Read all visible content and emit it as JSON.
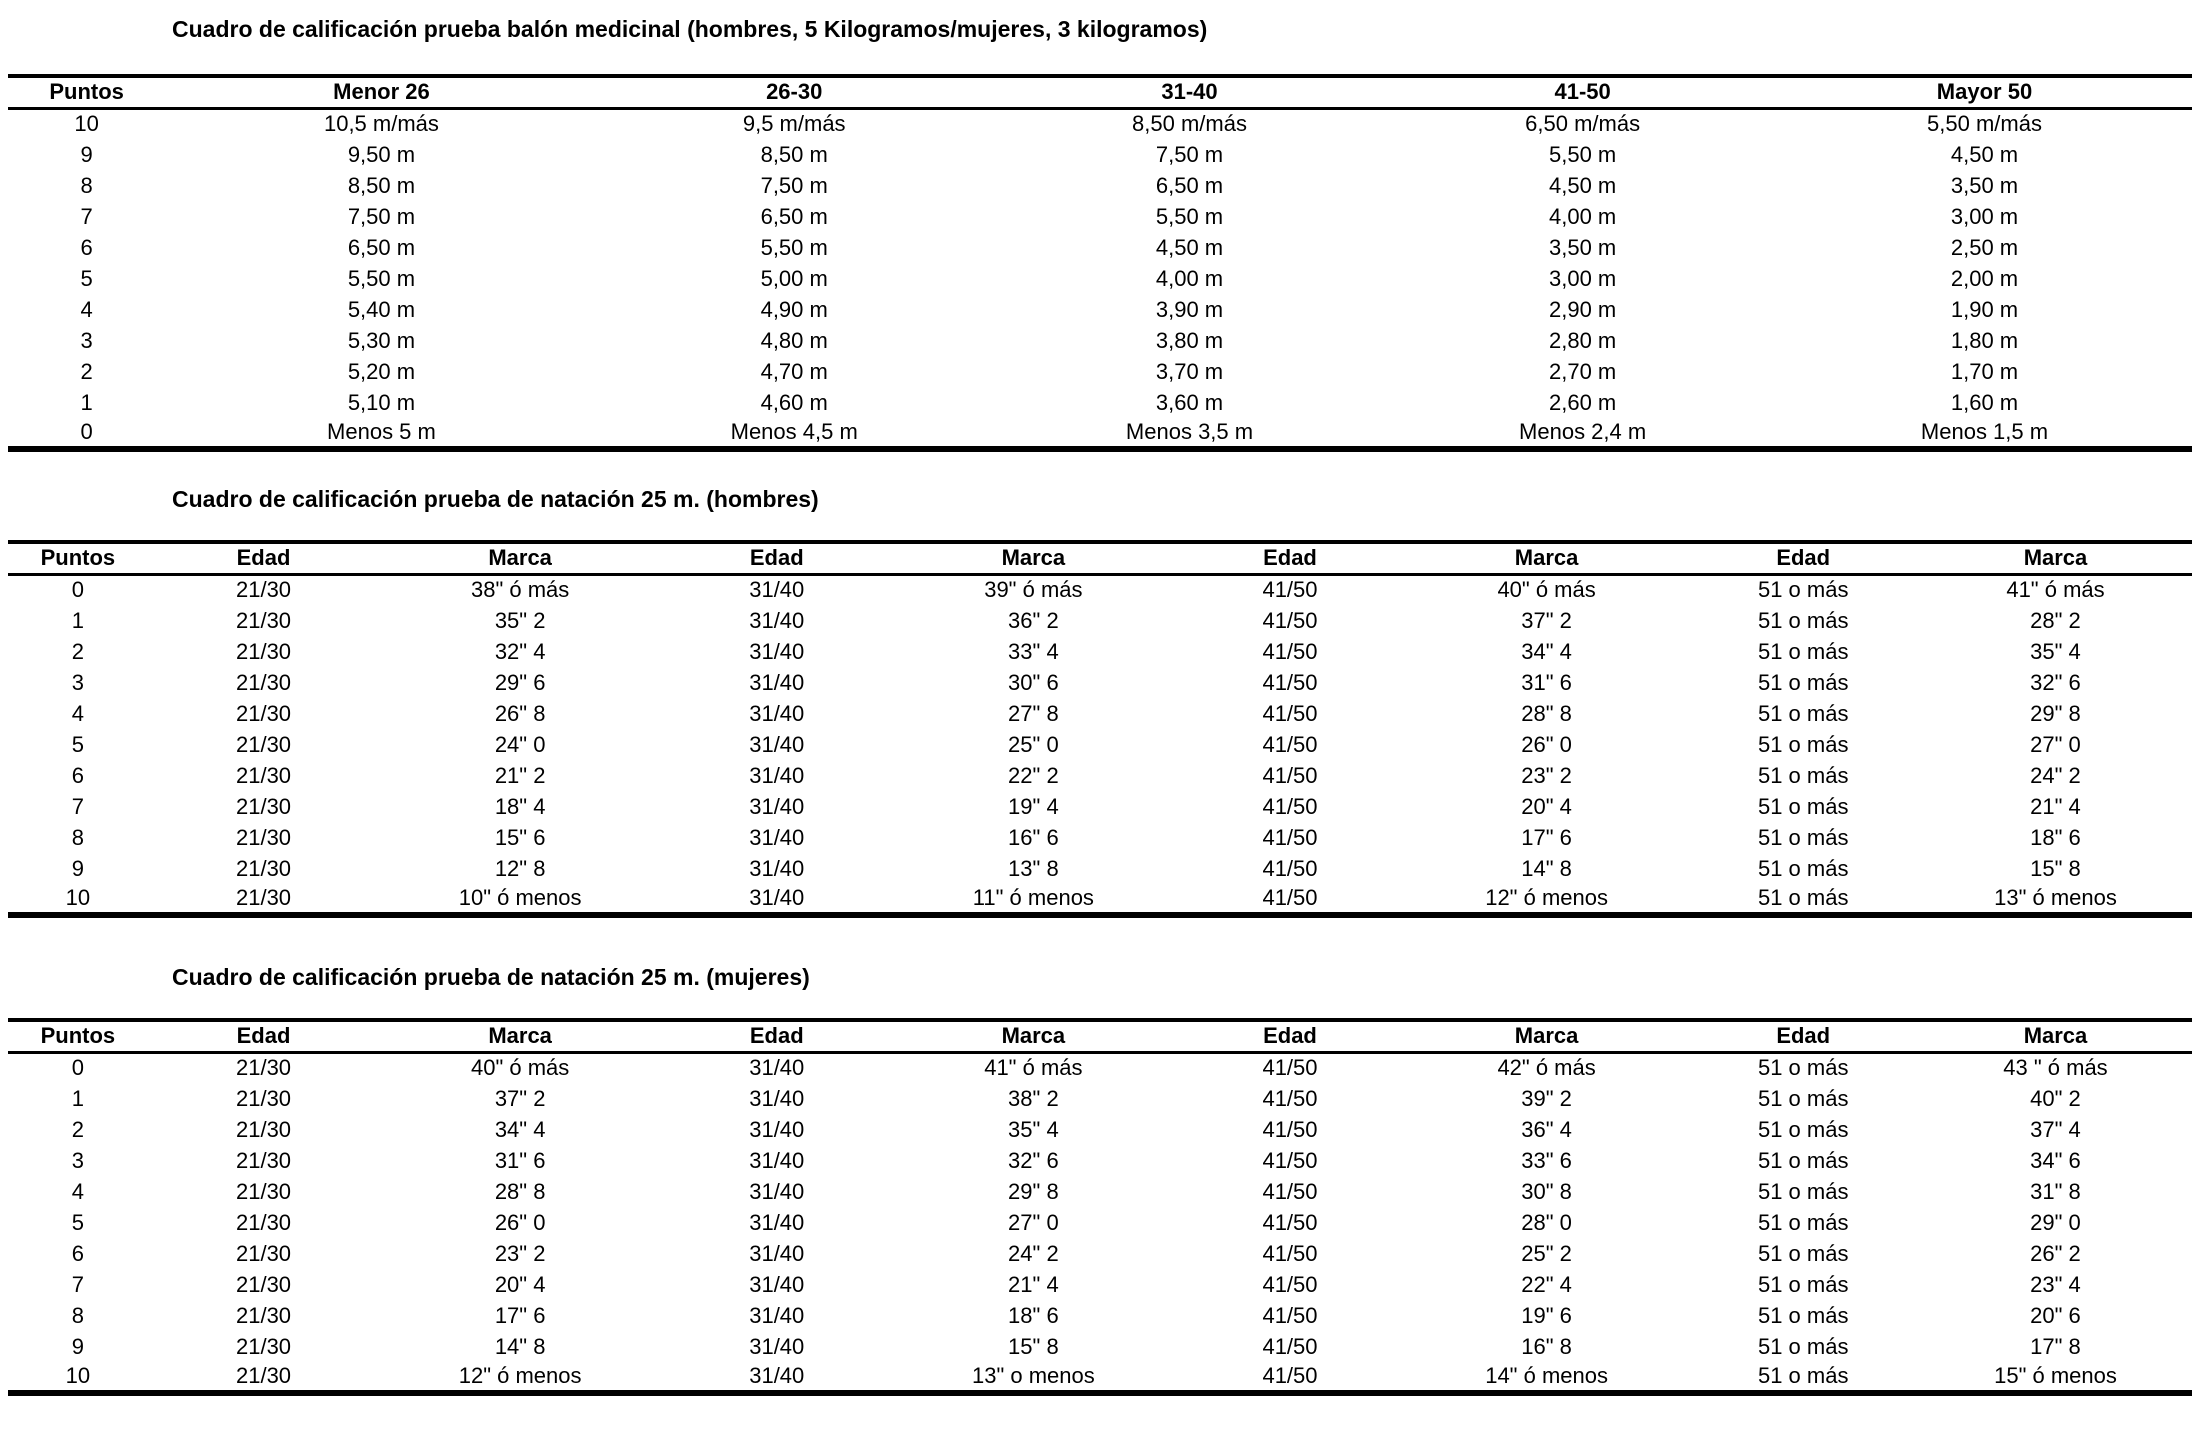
{
  "text_color": "#000000",
  "background_color": "#ffffff",
  "tables": [
    {
      "title": "Cuadro de calificación prueba balón medicinal (hombres, 5 Kilogramos/mujeres, 3 kilogramos)",
      "headers": [
        "Puntos",
        "Menor 26",
        "26-30",
        "31-40",
        "41-50",
        "Mayor 50"
      ],
      "rows": [
        [
          "10",
          "10,5  m/más",
          "9,5 m/más",
          "8,50 m/más",
          "6,50 m/más",
          "5,50 m/más"
        ],
        [
          "9",
          "9,50 m",
          "8,50 m",
          "7,50 m",
          "5,50 m",
          "4,50 m"
        ],
        [
          "8",
          "8,50 m",
          "7,50 m",
          "6,50 m",
          "4,50 m",
          "3,50 m"
        ],
        [
          "7",
          "7,50 m",
          "6,50 m",
          "5,50 m",
          "4,00 m",
          "3,00 m"
        ],
        [
          "6",
          "6,50 m",
          "5,50 m",
          "4,50 m",
          "3,50 m",
          "2,50 m"
        ],
        [
          "5",
          "5,50 m",
          "5,00 m",
          "4,00 m",
          "3,00 m",
          "2,00 m"
        ],
        [
          "4",
          "5,40 m",
          "4,90 m",
          "3,90 m",
          "2,90 m",
          "1,90 m"
        ],
        [
          "3",
          "5,30 m",
          "4,80 m",
          "3,80 m",
          "2,80 m",
          "1,80 m"
        ],
        [
          "2",
          "5,20 m",
          "4,70 m",
          "3,70 m",
          "2,70 m",
          "1,70 m"
        ],
        [
          "1",
          "5,10 m",
          "4,60 m",
          "3,60 m",
          "2,60 m",
          "1,60 m"
        ],
        [
          "0",
          "Menos 5 m",
          "Menos 4,5 m",
          "Menos 3,5 m",
          "Menos 2,4 m",
          "Menos 1,5 m"
        ]
      ]
    },
    {
      "title": "Cuadro de calificación prueba de natación 25 m. (hombres)",
      "headers": [
        "Puntos",
        "Edad",
        "Marca",
        "Edad",
        "Marca",
        "Edad",
        "Marca",
        "Edad",
        "Marca"
      ],
      "rows": [
        [
          "0",
          "21/30",
          "38\" ó más",
          "31/40",
          "39\" ó más",
          "41/50",
          "40\" ó más",
          "51 o más",
          "41\" ó más"
        ],
        [
          "1",
          "21/30",
          "35\" 2",
          "31/40",
          "36\" 2",
          "41/50",
          "37\" 2",
          "51 o más",
          "28\" 2"
        ],
        [
          "2",
          "21/30",
          "32\" 4",
          "31/40",
          "33\" 4",
          "41/50",
          "34\" 4",
          "51 o más",
          "35\" 4"
        ],
        [
          "3",
          "21/30",
          "29\" 6",
          "31/40",
          "30\" 6",
          "41/50",
          "31\" 6",
          "51 o más",
          "32\" 6"
        ],
        [
          "4",
          "21/30",
          "26\" 8",
          "31/40",
          "27\" 8",
          "41/50",
          "28\" 8",
          "51 o más",
          "29\" 8"
        ],
        [
          "5",
          "21/30",
          "24\" 0",
          "31/40",
          "25\" 0",
          "41/50",
          "26\" 0",
          "51 o más",
          "27\" 0"
        ],
        [
          "6",
          "21/30",
          "21\" 2",
          "31/40",
          "22\" 2",
          "41/50",
          "23\" 2",
          "51 o más",
          "24\" 2"
        ],
        [
          "7",
          "21/30",
          "18\" 4",
          "31/40",
          "19\" 4",
          "41/50",
          "20\" 4",
          "51 o más",
          "21\" 4"
        ],
        [
          "8",
          "21/30",
          "15\" 6",
          "31/40",
          "16\" 6",
          "41/50",
          "17\"  6",
          "51 o más",
          "18\" 6"
        ],
        [
          "9",
          "21/30",
          "12\" 8",
          "31/40",
          "13\" 8",
          "41/50",
          "14\" 8",
          "51 o más",
          "15\" 8"
        ],
        [
          "10",
          "21/30",
          "10\" ó menos",
          "31/40",
          "11\" ó  menos",
          "41/50",
          "12\" ó menos",
          "51 o más",
          "13\" ó menos"
        ]
      ]
    },
    {
      "title": "Cuadro de calificación prueba de natación 25 m. (mujeres)",
      "headers": [
        "Puntos",
        "Edad",
        "Marca",
        "Edad",
        "Marca",
        "Edad",
        "Marca",
        "Edad",
        "Marca"
      ],
      "rows": [
        [
          "0",
          "21/30",
          "40\" ó más",
          "31/40",
          "41\" ó más",
          "41/50",
          "42\" ó más",
          "51 o más",
          "43 \" ó más"
        ],
        [
          "1",
          "21/30",
          "37\" 2",
          "31/40",
          "38\" 2",
          "41/50",
          "39\" 2",
          "51 o más",
          "40\" 2"
        ],
        [
          "2",
          "21/30",
          "34\" 4",
          "31/40",
          "35\" 4",
          "41/50",
          "36\" 4",
          "51 o más",
          "37\" 4"
        ],
        [
          "3",
          "21/30",
          "31\" 6",
          "31/40",
          "32\" 6",
          "41/50",
          "33\" 6",
          "51 o más",
          "34\" 6"
        ],
        [
          "4",
          "21/30",
          "28\" 8",
          "31/40",
          "29\" 8",
          "41/50",
          "30\" 8",
          "51 o más",
          "31\" 8"
        ],
        [
          "5",
          "21/30",
          "26\" 0",
          "31/40",
          "27\" 0",
          "41/50",
          "28\" 0",
          "51 o más",
          "29\" 0"
        ],
        [
          "6",
          "21/30",
          "23\" 2",
          "31/40",
          "24\" 2",
          "41/50",
          "25\" 2",
          "51 o más",
          "26\" 2"
        ],
        [
          "7",
          "21/30",
          "20\" 4",
          "31/40",
          "21\" 4",
          "41/50",
          "22\" 4",
          "51 o más",
          "23\" 4"
        ],
        [
          "8",
          "21/30",
          "17\" 6",
          "31/40",
          "18\" 6",
          "41/50",
          "19\" 6",
          "51 o más",
          "20\" 6"
        ],
        [
          "9",
          "21/30",
          "14\" 8",
          "31/40",
          "15\" 8",
          "41/50",
          "16\" 8",
          "51 o más",
          "17\" 8"
        ],
        [
          "10",
          "21/30",
          "12\" ó menos",
          "31/40",
          "13\" o menos",
          "41/50",
          "14\" ó menos",
          "51 o más",
          "15\" ó menos"
        ]
      ]
    }
  ]
}
